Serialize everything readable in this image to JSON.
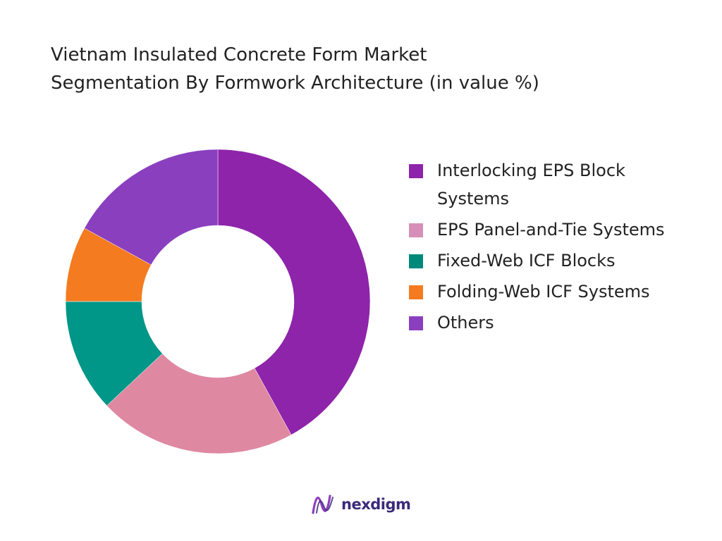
{
  "header": {
    "title_line1": "Vietnam Insulated Concrete Form Market",
    "title_line2": "Segmentation By Formwork Architecture (in value %)"
  },
  "chart_data": {
    "type": "pie",
    "variant": "donut",
    "title": "Vietnam Insulated Concrete Form Market Segmentation By Formwork Architecture (in value %)",
    "legend_position": "right",
    "categories": [
      "Interlocking EPS Block Systems",
      "EPS Panel-and-Tie Systems",
      "Fixed-Web ICF Blocks",
      "Folding-Web ICF Systems",
      "Others"
    ],
    "values": [
      42,
      21,
      12,
      8,
      17
    ],
    "colors": [
      "#8e24aa",
      "#df88a2",
      "#009688",
      "#f47b20",
      "#8a3fbf"
    ],
    "legend_colors": [
      "#8e24aa",
      "#d690b8",
      "#00897b",
      "#f47b20",
      "#8a3fbf"
    ]
  },
  "brand": {
    "name": "nexdigm",
    "mark_color": "#8e3fbf",
    "text_color": "#3b2a7a"
  }
}
